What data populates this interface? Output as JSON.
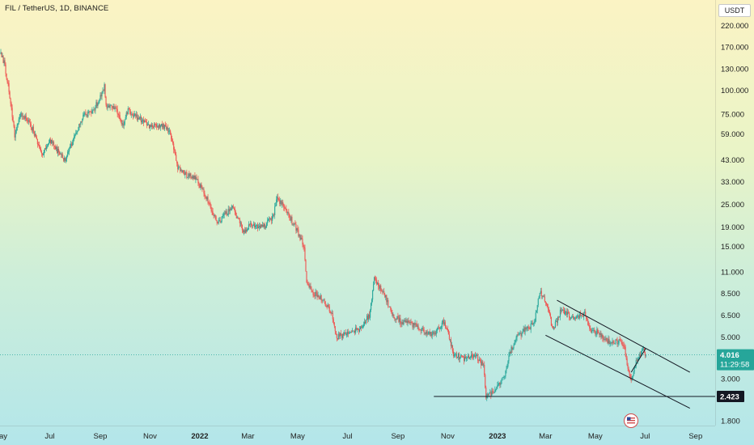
{
  "header": {
    "symbol_title": "FIL / TetherUS, 1D, BINANCE",
    "currency": "USDT"
  },
  "chart_data": {
    "type": "candlestick",
    "symbol": "FIL / TetherUS",
    "interval": "1D",
    "exchange": "BINANCE",
    "y_scale": "log",
    "ylim": [
      1.7,
      300
    ],
    "xlim": [
      "2021-05-01",
      "2023-09-25"
    ],
    "price_ticks": [
      {
        "value": 220,
        "label": "220.000"
      },
      {
        "value": 170,
        "label": "170.000"
      },
      {
        "value": 130,
        "label": "130.000"
      },
      {
        "value": 100,
        "label": "100.000"
      },
      {
        "value": 75,
        "label": "75.000"
      },
      {
        "value": 59,
        "label": "59.000"
      },
      {
        "value": 43,
        "label": "43.000"
      },
      {
        "value": 33,
        "label": "33.000"
      },
      {
        "value": 25,
        "label": "25.000"
      },
      {
        "value": 19,
        "label": "19.000"
      },
      {
        "value": 15,
        "label": "15.000"
      },
      {
        "value": 11,
        "label": "11.000"
      },
      {
        "value": 8.5,
        "label": "8.500"
      },
      {
        "value": 6.5,
        "label": "6.500"
      },
      {
        "value": 5,
        "label": "5.000"
      },
      {
        "value": 3,
        "label": "3.000"
      },
      {
        "value": 1.8,
        "label": "1.800"
      }
    ],
    "date_ticks": [
      {
        "date": "2021-05-01",
        "label": "May",
        "bold": false
      },
      {
        "date": "2021-07-01",
        "label": "Jul",
        "bold": false
      },
      {
        "date": "2021-09-01",
        "label": "Sep",
        "bold": false
      },
      {
        "date": "2021-11-01",
        "label": "Nov",
        "bold": false
      },
      {
        "date": "2022-01-01",
        "label": "2022",
        "bold": true
      },
      {
        "date": "2022-03-01",
        "label": "Mar",
        "bold": false
      },
      {
        "date": "2022-05-01",
        "label": "May",
        "bold": false
      },
      {
        "date": "2022-07-01",
        "label": "Jul",
        "bold": false
      },
      {
        "date": "2022-09-01",
        "label": "Sep",
        "bold": false
      },
      {
        "date": "2022-11-01",
        "label": "Nov",
        "bold": false
      },
      {
        "date": "2023-01-01",
        "label": "2023",
        "bold": true
      },
      {
        "date": "2023-03-01",
        "label": "Mar",
        "bold": false
      },
      {
        "date": "2023-05-01",
        "label": "May",
        "bold": false
      },
      {
        "date": "2023-07-01",
        "label": "Jul",
        "bold": false
      },
      {
        "date": "2023-09-01",
        "label": "Sep",
        "bold": false
      }
    ],
    "price_path": [
      [
        "2021-05-01",
        160
      ],
      [
        "2021-05-06",
        140
      ],
      [
        "2021-05-12",
        100
      ],
      [
        "2021-05-19",
        58
      ],
      [
        "2021-05-26",
        75
      ],
      [
        "2021-06-04",
        70
      ],
      [
        "2021-06-10",
        62
      ],
      [
        "2021-06-22",
        46
      ],
      [
        "2021-07-01",
        55
      ],
      [
        "2021-07-10",
        48
      ],
      [
        "2021-07-20",
        43
      ],
      [
        "2021-07-30",
        55
      ],
      [
        "2021-08-10",
        72
      ],
      [
        "2021-08-25",
        80
      ],
      [
        "2021-09-06",
        105
      ],
      [
        "2021-09-08",
        82
      ],
      [
        "2021-09-20",
        80
      ],
      [
        "2021-09-28",
        65
      ],
      [
        "2021-10-05",
        78
      ],
      [
        "2021-10-20",
        70
      ],
      [
        "2021-11-01",
        64
      ],
      [
        "2021-11-15",
        66
      ],
      [
        "2021-11-26",
        60
      ],
      [
        "2021-12-04",
        40
      ],
      [
        "2021-12-15",
        36
      ],
      [
        "2021-12-28",
        34
      ],
      [
        "2022-01-10",
        27
      ],
      [
        "2022-01-22",
        20
      ],
      [
        "2022-02-01",
        22
      ],
      [
        "2022-02-10",
        24
      ],
      [
        "2022-02-24",
        18
      ],
      [
        "2022-03-05",
        19.5
      ],
      [
        "2022-03-20",
        19
      ],
      [
        "2022-04-01",
        21.5
      ],
      [
        "2022-04-06",
        27
      ],
      [
        "2022-04-15",
        24
      ],
      [
        "2022-04-28",
        19
      ],
      [
        "2022-05-09",
        15
      ],
      [
        "2022-05-12",
        10
      ],
      [
        "2022-05-20",
        8.5
      ],
      [
        "2022-06-01",
        8
      ],
      [
        "2022-06-12",
        6.5
      ],
      [
        "2022-06-18",
        5
      ],
      [
        "2022-07-01",
        5.2
      ],
      [
        "2022-07-15",
        5.5
      ],
      [
        "2022-07-28",
        6.5
      ],
      [
        "2022-08-03",
        10
      ],
      [
        "2022-08-15",
        8.5
      ],
      [
        "2022-08-25",
        6.5
      ],
      [
        "2022-09-05",
        6
      ],
      [
        "2022-09-20",
        5.8
      ],
      [
        "2022-10-01",
        5.4
      ],
      [
        "2022-10-15",
        5.1
      ],
      [
        "2022-10-28",
        6.1
      ],
      [
        "2022-11-08",
        4.1
      ],
      [
        "2022-11-20",
        3.8
      ],
      [
        "2022-12-05",
        4.0
      ],
      [
        "2022-12-15",
        3.5
      ],
      [
        "2022-12-18",
        2.4
      ],
      [
        "2022-12-31",
        2.7
      ],
      [
        "2023-01-10",
        3.1
      ],
      [
        "2023-01-15",
        4.0
      ],
      [
        "2023-01-25",
        5.0
      ],
      [
        "2023-02-05",
        5.5
      ],
      [
        "2023-02-15",
        5.8
      ],
      [
        "2023-02-22",
        8.8
      ],
      [
        "2023-03-03",
        7.4
      ],
      [
        "2023-03-10",
        5.4
      ],
      [
        "2023-03-20",
        6.9
      ],
      [
        "2023-04-05",
        6.2
      ],
      [
        "2023-04-18",
        6.6
      ],
      [
        "2023-04-25",
        5.4
      ],
      [
        "2023-05-05",
        5.3
      ],
      [
        "2023-05-20",
        4.6
      ],
      [
        "2023-06-01",
        4.8
      ],
      [
        "2023-06-06",
        4.3
      ],
      [
        "2023-06-10",
        3.4
      ],
      [
        "2023-06-14",
        3.0
      ],
      [
        "2023-06-20",
        3.7
      ],
      [
        "2023-06-28",
        4.3
      ],
      [
        "2023-07-02",
        4.0
      ]
    ],
    "trendlines": [
      {
        "name": "channel-upper",
        "points": [
          [
            "2023-03-15",
            7.8
          ],
          [
            "2023-08-25",
            3.25
          ]
        ]
      },
      {
        "name": "channel-lower",
        "points": [
          [
            "2023-03-01",
            5.1
          ],
          [
            "2023-08-25",
            2.1
          ]
        ]
      },
      {
        "name": "triangle-upper",
        "points": [
          [
            "2023-06-14",
            3.25
          ],
          [
            "2023-07-02",
            4.35
          ]
        ]
      },
      {
        "name": "support-horizontal",
        "points": [
          [
            "2022-10-15",
            2.423
          ],
          [
            "2023-09-25",
            2.423
          ]
        ]
      }
    ],
    "price_line": 4.016,
    "last_price_tag": {
      "price": "4.016",
      "countdown": "11:29:58",
      "color": "#26a69a"
    },
    "support_tag": {
      "price": "2.423"
    },
    "colors": {
      "up": "#26a69a",
      "down": "#ef5350",
      "line": "#131722"
    }
  }
}
